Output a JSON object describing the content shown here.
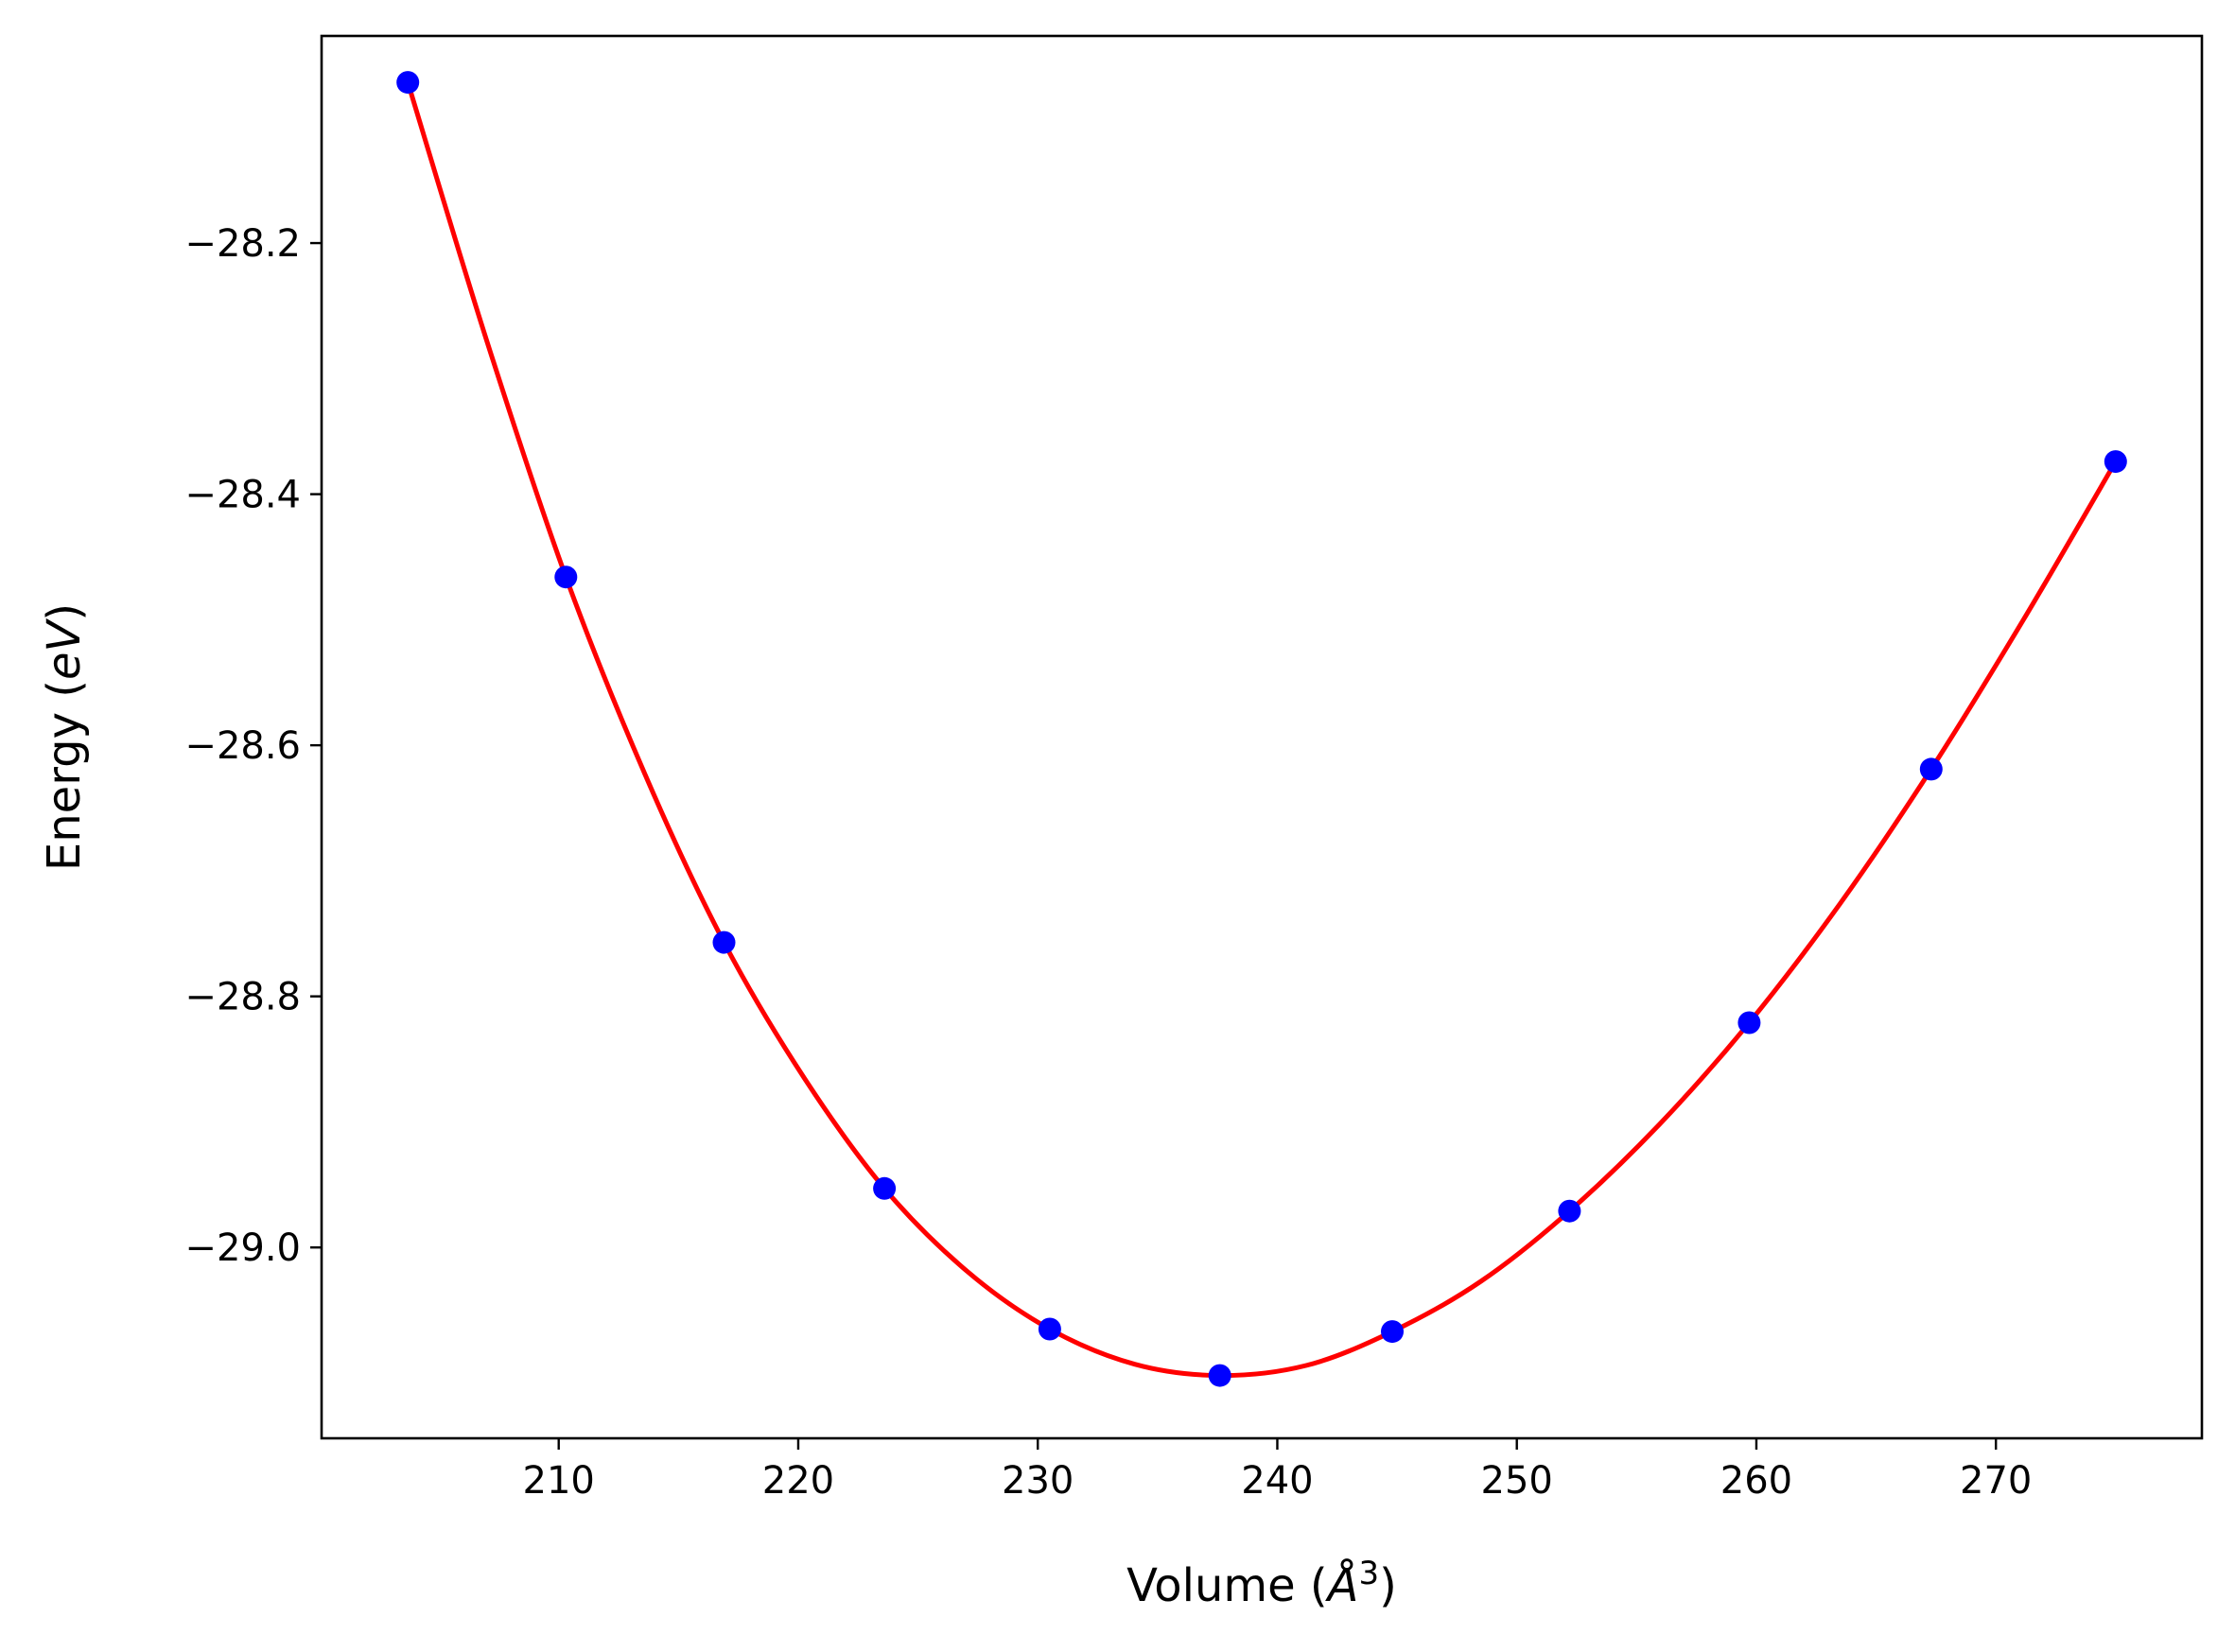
{
  "chart_data": {
    "type": "scatter",
    "title": "",
    "xlabel": {
      "prefix": "Volume (",
      "symbol": "Å",
      "superscript": "3",
      "suffix": ")"
    },
    "ylabel": {
      "prefix": "Energy (",
      "unit": "eV",
      "suffix": ")"
    },
    "xlim": [
      200.1,
      278.6
    ],
    "ylim": [
      -29.152,
      -28.035
    ],
    "x_ticks": [
      210,
      220,
      230,
      240,
      250,
      260,
      270
    ],
    "x_tick_labels": [
      "210",
      "220",
      "230",
      "240",
      "250",
      "260",
      "270"
    ],
    "y_ticks": [
      -28.2,
      -28.4,
      -28.6,
      -28.8,
      -29.0
    ],
    "y_tick_labels": [
      "−28.2",
      "−28.4",
      "−28.6",
      "−28.8",
      "−29.0"
    ],
    "grid": false,
    "legend": "none",
    "points": {
      "color": "#0000ff",
      "x": [
        203.7,
        210.3,
        216.9,
        223.6,
        230.5,
        237.6,
        244.8,
        252.2,
        259.7,
        267.3,
        275.0
      ],
      "y": [
        -28.072,
        -28.466,
        -28.757,
        -28.953,
        -29.065,
        -29.102,
        -29.067,
        -28.971,
        -28.821,
        -28.619,
        -28.374
      ]
    },
    "fit": {
      "color": "#ff0000",
      "x": [
        203.7,
        207.0,
        210.3,
        213.6,
        216.9,
        220.25,
        223.6,
        227.05,
        230.5,
        234.05,
        237.6,
        241.2,
        244.8,
        248.5,
        252.2,
        255.95,
        259.7,
        263.5,
        267.3,
        271.15,
        275.0
      ],
      "y": [
        -28.072,
        -28.278,
        -28.466,
        -28.623,
        -28.757,
        -28.865,
        -28.953,
        -29.019,
        -29.065,
        -29.093,
        -29.102,
        -29.094,
        -29.067,
        -29.027,
        -28.971,
        -28.902,
        -28.821,
        -28.726,
        -28.619,
        -28.5,
        -28.374
      ]
    }
  }
}
